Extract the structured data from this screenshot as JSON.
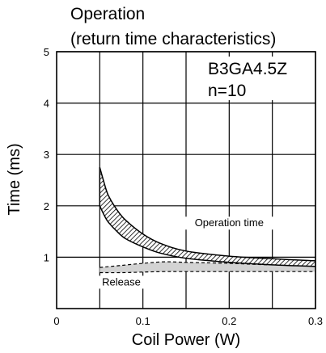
{
  "chart_data": {
    "type": "area",
    "title_lines": [
      "Operation",
      "(return time characteristics)"
    ],
    "model": "B3GA4.5Z",
    "sample": "n=10",
    "xlabel": "Coil Power (W)",
    "ylabel": "Time (ms)",
    "xlim": [
      0,
      0.3
    ],
    "ylim": [
      0,
      5
    ],
    "x_ticks": [
      "0",
      "0.1",
      "0.2",
      "0.3"
    ],
    "y_ticks": [
      "1",
      "2",
      "3",
      "4",
      "5"
    ],
    "x_tick_values": [
      0,
      0.1,
      0.2,
      0.3
    ],
    "y_tick_values": [
      1,
      2,
      3,
      4,
      5
    ],
    "x_grid": [
      0.05,
      0.1,
      0.15,
      0.2,
      0.25,
      0.3
    ],
    "y_grid": [
      1,
      2,
      3,
      4,
      5
    ],
    "grid": true,
    "annotations": [
      {
        "text": "Operation time",
        "x": 0.2,
        "y": 1.6
      },
      {
        "text": "Release",
        "x": 0.075,
        "y": 0.45
      }
    ],
    "series": [
      {
        "name": "Operation time",
        "style": "hatched band",
        "x": [
          0.05,
          0.055,
          0.06,
          0.07,
          0.08,
          0.1,
          0.12,
          0.15,
          0.2,
          0.25,
          0.3
        ],
        "upper": [
          2.75,
          2.45,
          2.2,
          1.92,
          1.72,
          1.45,
          1.27,
          1.12,
          1.02,
          0.97,
          0.93
        ],
        "lower": [
          2.0,
          1.82,
          1.68,
          1.5,
          1.36,
          1.2,
          1.08,
          0.98,
          0.9,
          0.85,
          0.82
        ]
      },
      {
        "name": "Release",
        "style": "gray dashed band",
        "x": [
          0.05,
          0.075,
          0.1,
          0.125,
          0.15,
          0.2,
          0.25,
          0.3
        ],
        "upper": [
          0.8,
          0.84,
          0.88,
          0.91,
          0.9,
          0.88,
          0.85,
          0.85
        ],
        "lower": [
          0.7,
          0.7,
          0.71,
          0.72,
          0.72,
          0.72,
          0.72,
          0.72
        ]
      }
    ]
  }
}
